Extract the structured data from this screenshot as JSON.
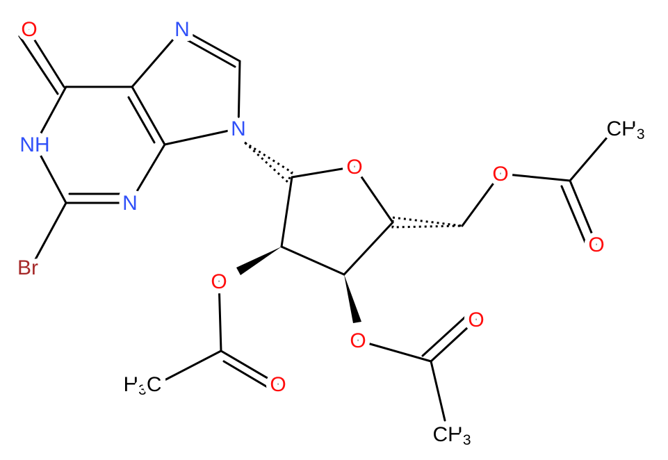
{
  "atoms": [
    {
      "label": "O",
      "element": "O"
    },
    {
      "label": "NH",
      "element": "N"
    },
    {
      "label": "N",
      "element": "N"
    },
    {
      "label": "N",
      "element": "N"
    },
    {
      "label": "N",
      "element": "N"
    },
    {
      "label": "Br",
      "element": "Br"
    },
    {
      "label": "O",
      "element": "O"
    },
    {
      "label": "O",
      "element": "O"
    },
    {
      "label": "O",
      "element": "O"
    },
    {
      "label": "O",
      "element": "O"
    },
    {
      "label": "O",
      "element": "O"
    },
    {
      "label": "O",
      "element": "O"
    },
    {
      "label": "O",
      "element": "O"
    },
    {
      "label": "CH",
      "sub": "3",
      "element": "C"
    },
    {
      "label": "H",
      "sub": "3",
      "after": "C",
      "element": "C"
    },
    {
      "label": "CH",
      "sub": "3",
      "element": "C"
    }
  ]
}
